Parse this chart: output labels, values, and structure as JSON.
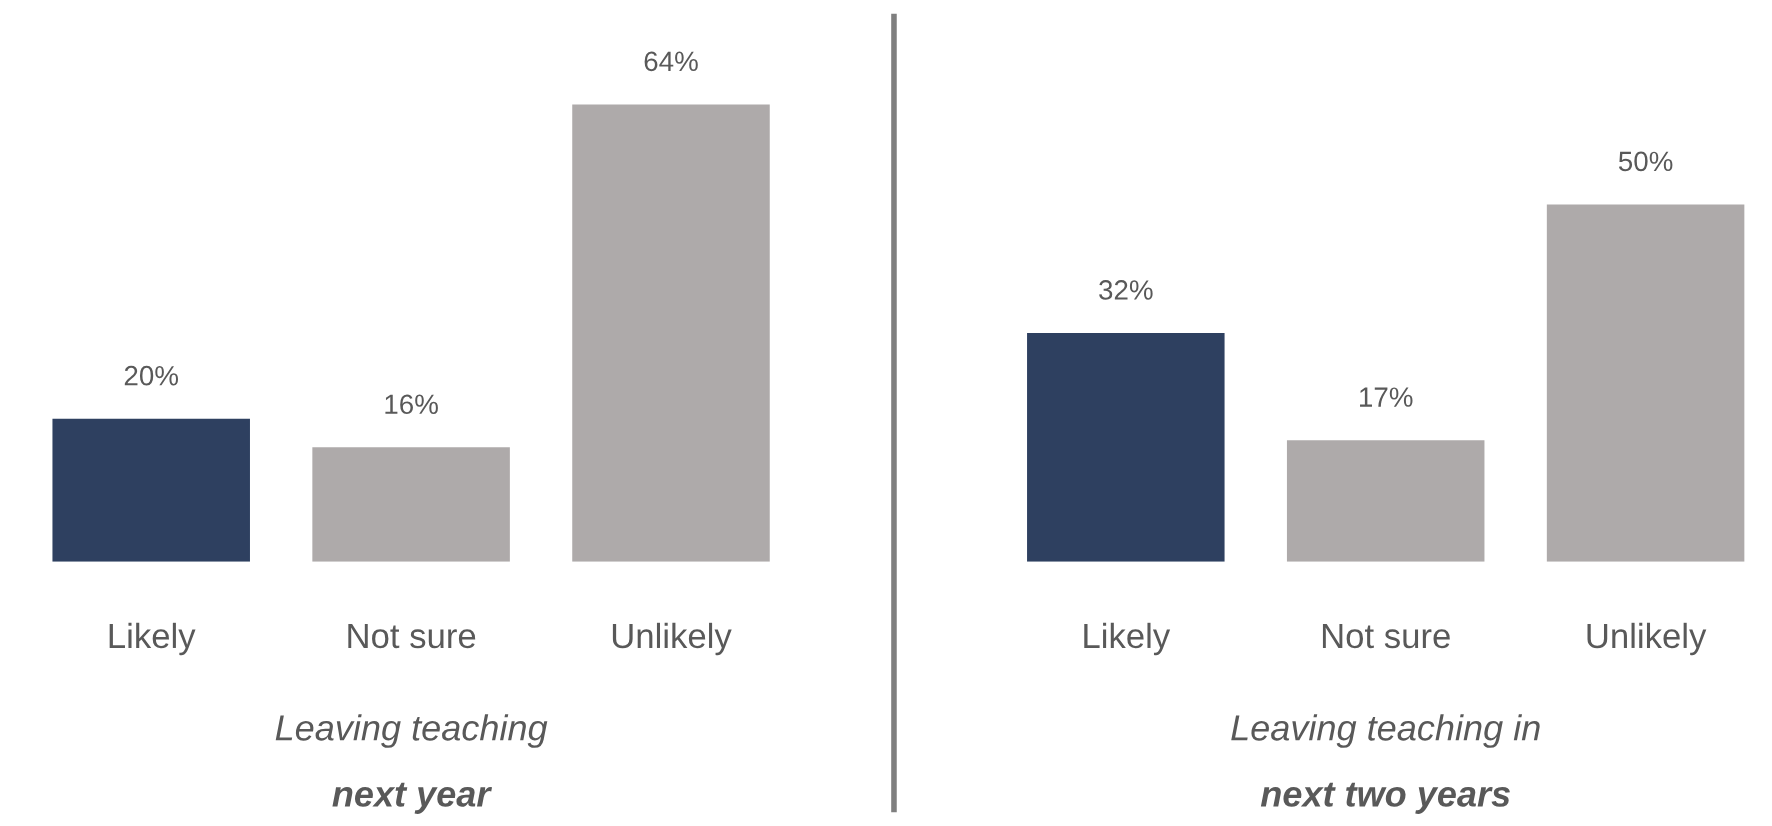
{
  "chart_data": [
    {
      "type": "bar",
      "categories": [
        "Likely",
        "Not sure",
        "Unlikely"
      ],
      "values": [
        20,
        16,
        64
      ],
      "value_labels": [
        "20%",
        "16%",
        "64%"
      ],
      "colors": [
        "#2e4060",
        "#aeaaaa",
        "#aeaaaa"
      ],
      "xlabel": "Leaving teaching\nnext year",
      "grid": false,
      "legend": false
    },
    {
      "type": "bar",
      "categories": [
        "Likely",
        "Not sure",
        "Unlikely"
      ],
      "values": [
        32,
        17,
        50
      ],
      "value_labels": [
        "32%",
        "17%",
        "50%"
      ],
      "colors": [
        "#2e4060",
        "#aeaaaa",
        "#aeaaaa"
      ],
      "xlabel": "Leaving teaching in\nnext two years",
      "grid": false,
      "legend": false
    }
  ]
}
